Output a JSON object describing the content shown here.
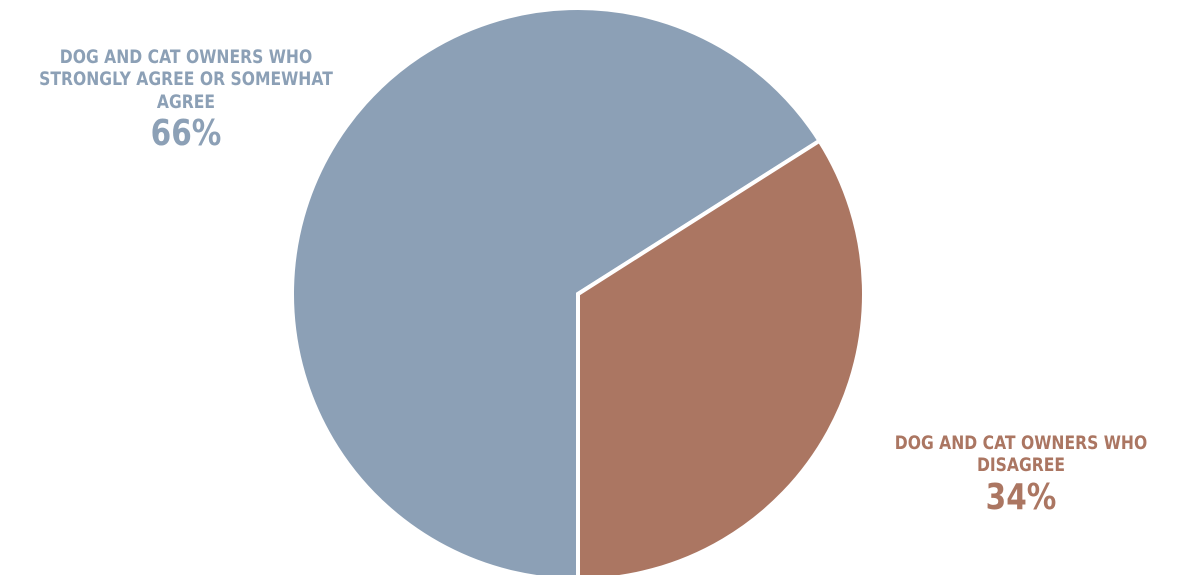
{
  "chart_data": {
    "type": "pie",
    "categories": [
      "DOG AND CAT OWNERS WHO STRONGLY AGREE OR SOMEWHAT AGREE",
      "DOG AND CAT OWNERS WHO DISAGREE"
    ],
    "values": [
      66,
      34
    ],
    "value_labels": [
      "66%",
      "34%"
    ],
    "colors": [
      "#8ca0b6",
      "#ab7662"
    ],
    "title": "",
    "legend": "none",
    "label_placement": "outside"
  }
}
